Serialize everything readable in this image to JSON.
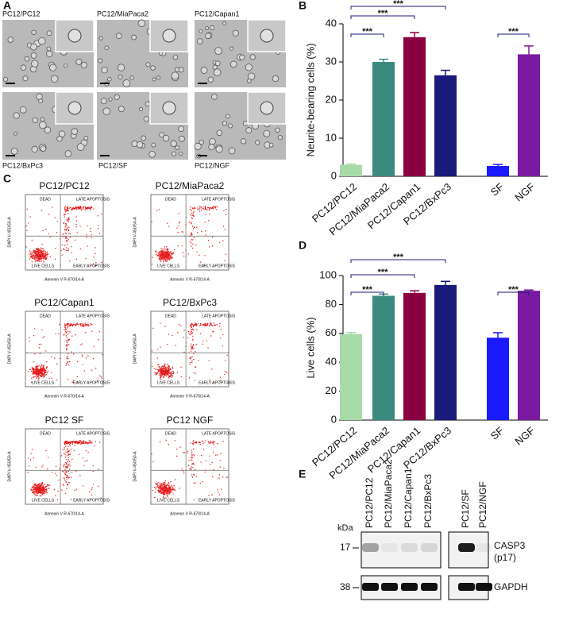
{
  "panel_labels": [
    "A",
    "B",
    "C",
    "D",
    "E"
  ],
  "panel_a": {
    "images": [
      "PC12/PC12",
      "PC12/MiaPaca2",
      "PC12/Capan1",
      "PC12/BxPc3",
      "PC12/SF",
      "PC12/NGF"
    ]
  },
  "panel_c": {
    "plots": [
      "PC12/PC12",
      "PC12/MiaPaca2",
      "PC12/Capan1",
      "PC12/BxPc3",
      "PC12 SF",
      "PC12 NGF"
    ],
    "quadrants": [
      "DEAD",
      "LATE APOPTOSIS",
      "LIVE CELLS",
      "EARLY APOPTOSIS"
    ],
    "xlabel": "Annexin V R-670/14-A",
    "ylabel": "DAPI V-450/50-A"
  },
  "chart_data": [
    {
      "type": "bar",
      "y_label": "Neurite-bearing cells (%)",
      "categories": [
        "PC12/PC12",
        "PC12/MiaPaca2",
        "PC12/Capan1",
        "PC12/BxPc3",
        "SF",
        "NGF"
      ],
      "values": [
        3.0,
        30,
        36.5,
        26.5,
        2.7,
        32
      ],
      "errors": [
        0.2,
        0.7,
        1.2,
        1.3,
        0.4,
        2.2
      ],
      "colors": [
        "#a8dba8",
        "#3a8a80",
        "#8b0040",
        "#1a1a7a",
        "#1a1aff",
        "#7a1aa0"
      ],
      "ylim": [
        0,
        40
      ],
      "yticks": [
        0,
        10,
        20,
        30,
        40
      ],
      "annotations": [
        "***",
        "***",
        "***",
        "***"
      ]
    },
    {
      "type": "bar",
      "y_label": "Live cells (%)",
      "categories": [
        "PC12/PC12",
        "PC12/MiaPaca2",
        "PC12/Capan1",
        "PC12/BxPc3",
        "SF",
        "NGF"
      ],
      "values": [
        59.5,
        86,
        88,
        93.5,
        57,
        89.5
      ],
      "errors": [
        1,
        1.2,
        1.5,
        2.5,
        3.5,
        0.5
      ],
      "colors": [
        "#a8dba8",
        "#3a8a80",
        "#8b0040",
        "#1a1a7a",
        "#1a1aff",
        "#7a1aa0"
      ],
      "ylim": [
        0,
        100
      ],
      "yticks": [
        0,
        20,
        40,
        60,
        80,
        100
      ],
      "annotations": [
        "***",
        "***",
        "***",
        "***"
      ]
    }
  ],
  "panel_e": {
    "unit": "kDa",
    "lanes": [
      "PC12/PC12",
      "PC12/MiaPaca2",
      "PC12/Capan1",
      "PC12/BxPc3",
      "PC12/SF",
      "PC12/NGF"
    ],
    "markers": [
      "17",
      "38"
    ],
    "bands": [
      "CASP3",
      "(p17)",
      "GAPDH"
    ]
  }
}
